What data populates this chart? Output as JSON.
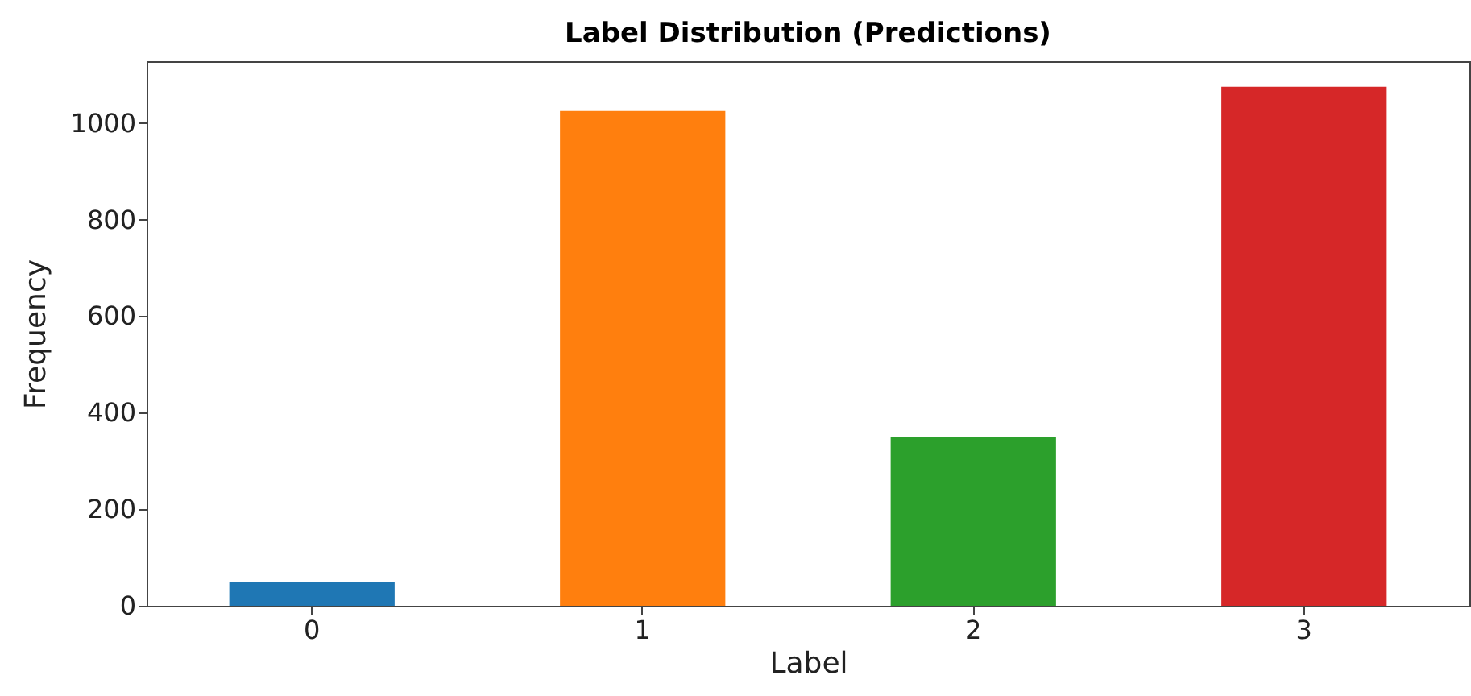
{
  "chart_data": {
    "type": "bar",
    "title": "Label Distribution (Predictions)",
    "xlabel": "Label",
    "ylabel": "Frequency",
    "categories": [
      "0",
      "1",
      "2",
      "3"
    ],
    "values": [
      50,
      1025,
      349,
      1075
    ],
    "colors": [
      "#1f77b4",
      "#ff7f0e",
      "#2ca02c",
      "#d62728"
    ],
    "ylim": [
      0,
      1128
    ],
    "yticks": [
      0,
      200,
      400,
      600,
      800,
      1000
    ],
    "grid": false,
    "legend": false
  }
}
